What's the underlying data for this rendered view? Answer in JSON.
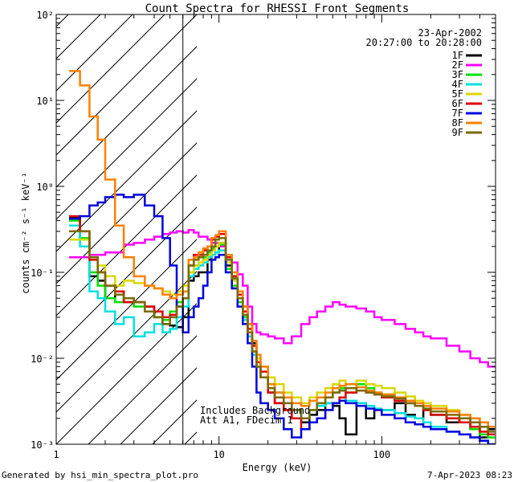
{
  "chart_data": {
    "type": "line",
    "title": "Count Spectra for RHESSI Front Segments",
    "xlabel": "Energy (keV)",
    "ylabel": "counts cm⁻² s⁻¹ keV⁻¹",
    "x_scale": "log",
    "y_scale": "log",
    "xlim": [
      1,
      500
    ],
    "ylim": [
      0.001,
      100
    ],
    "x_tick_labels": [
      "1",
      "10",
      "100"
    ],
    "y_tick_labels": [
      "10⁻³",
      "10⁻²",
      "10⁻¹",
      "10⁰",
      "10¹",
      "10²"
    ],
    "date": "23-Apr-2002",
    "time_range": "20:27:00 to 20:28:00",
    "excluded_region_keV": [
      1,
      6
    ],
    "annotations": [
      "Includes Background",
      "Att A1, FDecim 1"
    ],
    "footer_left": "Generated by hsi_min_spectra_plot.pro",
    "footer_right": "7-Apr-2023 08:23",
    "legend_position": "top-right",
    "series": [
      {
        "name": "1F",
        "color": "#000000",
        "x": [
          1.2,
          1.4,
          1.6,
          1.8,
          2.0,
          2.3,
          2.6,
          3.0,
          3.5,
          4.0,
          4.5,
          5.0,
          5.5,
          6.0,
          6.5,
          7.0,
          7.5,
          8.0,
          8.5,
          9.0,
          9.5,
          10,
          11,
          12,
          13,
          14,
          15,
          16,
          17,
          18,
          20,
          22,
          25,
          28,
          32,
          36,
          40,
          45,
          50,
          55,
          60,
          70,
          80,
          90,
          100,
          120,
          140,
          160,
          180,
          200,
          250,
          300,
          350,
          400,
          450
        ],
        "y": [
          0.43,
          0.24,
          0.09,
          0.08,
          0.05,
          0.06,
          0.045,
          0.045,
          0.04,
          0.03,
          0.025,
          0.024,
          0.023,
          0.03,
          0.08,
          0.09,
          0.1,
          0.1,
          0.14,
          0.16,
          0.17,
          0.22,
          0.12,
          0.09,
          0.06,
          0.04,
          0.025,
          0.015,
          0.008,
          0.006,
          0.004,
          0.003,
          0.0025,
          0.002,
          0.0018,
          0.0022,
          0.0025,
          0.003,
          0.0028,
          0.002,
          0.0013,
          0.003,
          0.002,
          0.0025,
          0.0025,
          0.003,
          0.0022,
          0.002,
          0.0025,
          0.0022,
          0.0018,
          0.002,
          0.0015,
          0.0012,
          0.0015
        ]
      },
      {
        "name": "2F",
        "color": "#ff00ff",
        "x": [
          1.2,
          1.4,
          1.6,
          1.8,
          2.0,
          2.3,
          2.6,
          3.0,
          3.5,
          4.0,
          4.5,
          5.0,
          5.5,
          6.0,
          6.5,
          7.0,
          7.5,
          8.0,
          8.5,
          9.0,
          9.5,
          10,
          11,
          12,
          13,
          14,
          15,
          16,
          17,
          18,
          20,
          22,
          25,
          28,
          32,
          36,
          40,
          45,
          50,
          55,
          60,
          70,
          80,
          90,
          100,
          120,
          140,
          160,
          180,
          200,
          250,
          300,
          350,
          400,
          450
        ],
        "y": [
          0.15,
          0.15,
          0.16,
          0.16,
          0.17,
          0.17,
          0.21,
          0.22,
          0.24,
          0.26,
          0.28,
          0.29,
          0.3,
          0.29,
          0.31,
          0.29,
          0.26,
          0.26,
          0.24,
          0.22,
          0.22,
          0.2,
          0.16,
          0.13,
          0.095,
          0.07,
          0.04,
          0.025,
          0.02,
          0.019,
          0.018,
          0.017,
          0.015,
          0.018,
          0.025,
          0.03,
          0.035,
          0.04,
          0.045,
          0.042,
          0.04,
          0.038,
          0.035,
          0.03,
          0.028,
          0.025,
          0.022,
          0.02,
          0.018,
          0.017,
          0.014,
          0.012,
          0.01,
          0.009,
          0.008
        ]
      },
      {
        "name": "3F",
        "color": "#00e000",
        "x": [
          1.2,
          1.4,
          1.6,
          1.8,
          2.0,
          2.3,
          2.6,
          3.0,
          3.5,
          4.0,
          4.5,
          5.0,
          5.5,
          6.0,
          6.5,
          7.0,
          7.5,
          8.0,
          8.5,
          9.0,
          9.5,
          10,
          11,
          12,
          13,
          14,
          15,
          16,
          17,
          18,
          20,
          22,
          25,
          28,
          32,
          36,
          40,
          45,
          50,
          55,
          60,
          70,
          80,
          90,
          100,
          120,
          140,
          160,
          180,
          200,
          250,
          300,
          350,
          400,
          450
        ],
        "y": [
          0.4,
          0.25,
          0.1,
          0.07,
          0.05,
          0.045,
          0.045,
          0.04,
          0.035,
          0.03,
          0.028,
          0.035,
          0.045,
          0.05,
          0.1,
          0.12,
          0.13,
          0.15,
          0.17,
          0.19,
          0.2,
          0.21,
          0.11,
          0.07,
          0.045,
          0.03,
          0.02,
          0.012,
          0.009,
          0.006,
          0.005,
          0.004,
          0.0035,
          0.0025,
          0.002,
          0.0025,
          0.003,
          0.0035,
          0.004,
          0.0045,
          0.004,
          0.005,
          0.0045,
          0.004,
          0.0038,
          0.0035,
          0.003,
          0.0028,
          0.0025,
          0.0022,
          0.002,
          0.0018,
          0.0015,
          0.0013,
          0.0012
        ]
      },
      {
        "name": "4F",
        "color": "#00e0e0",
        "x": [
          1.2,
          1.4,
          1.6,
          1.8,
          2.0,
          2.3,
          2.6,
          3.0,
          3.5,
          4.0,
          4.5,
          5.0,
          5.5,
          6.0,
          6.5,
          7.0,
          7.5,
          8.0,
          8.5,
          9.0,
          9.5,
          10,
          11,
          12,
          13,
          14,
          15,
          16,
          17,
          18,
          20,
          22,
          25,
          28,
          32,
          36,
          40,
          45,
          50,
          55,
          60,
          70,
          80,
          90,
          100,
          120,
          140,
          160,
          180,
          200,
          250,
          300,
          350,
          400,
          450
        ],
        "y": [
          0.35,
          0.2,
          0.06,
          0.05,
          0.035,
          0.025,
          0.03,
          0.018,
          0.02,
          0.025,
          0.02,
          0.022,
          0.03,
          0.04,
          0.09,
          0.11,
          0.12,
          0.13,
          0.15,
          0.16,
          0.17,
          0.18,
          0.1,
          0.065,
          0.04,
          0.028,
          0.018,
          0.011,
          0.008,
          0.006,
          0.005,
          0.004,
          0.003,
          0.0025,
          0.002,
          0.0025,
          0.0028,
          0.003,
          0.003,
          0.0035,
          0.0032,
          0.003,
          0.0028,
          0.0026,
          0.0025,
          0.0023,
          0.0021,
          0.002,
          0.0018,
          0.0016,
          0.0014,
          0.0013,
          0.0012,
          0.0011,
          0.001
        ]
      },
      {
        "name": "5F",
        "color": "#d8d800",
        "x": [
          1.2,
          1.4,
          1.6,
          1.8,
          2.0,
          2.3,
          2.6,
          3.0,
          3.5,
          4.0,
          4.5,
          5.0,
          5.5,
          6.0,
          6.5,
          7.0,
          7.5,
          8.0,
          8.5,
          9.0,
          9.5,
          10,
          11,
          12,
          13,
          14,
          15,
          16,
          17,
          18,
          20,
          22,
          25,
          28,
          32,
          36,
          40,
          45,
          50,
          55,
          60,
          70,
          80,
          90,
          100,
          120,
          140,
          160,
          180,
          200,
          250,
          300,
          350,
          400,
          450
        ],
        "y": [
          0.24,
          0.24,
          0.15,
          0.12,
          0.09,
          0.07,
          0.08,
          0.075,
          0.07,
          0.065,
          0.06,
          0.055,
          0.06,
          0.07,
          0.1,
          0.12,
          0.13,
          0.14,
          0.16,
          0.18,
          0.2,
          0.22,
          0.13,
          0.08,
          0.05,
          0.035,
          0.02,
          0.014,
          0.01,
          0.008,
          0.006,
          0.005,
          0.004,
          0.0035,
          0.003,
          0.0035,
          0.004,
          0.0045,
          0.005,
          0.0055,
          0.005,
          0.0055,
          0.005,
          0.0048,
          0.0045,
          0.004,
          0.0036,
          0.0032,
          0.003,
          0.0028,
          0.0025,
          0.0022,
          0.002,
          0.0018,
          0.0016
        ]
      },
      {
        "name": "6F",
        "color": "#e00000",
        "x": [
          1.2,
          1.4,
          1.6,
          1.8,
          2.0,
          2.3,
          2.6,
          3.0,
          3.5,
          4.0,
          4.5,
          5.0,
          5.5,
          6.0,
          6.5,
          7.0,
          7.5,
          8.0,
          8.5,
          9.0,
          9.5,
          10,
          11,
          12,
          13,
          14,
          15,
          16,
          17,
          18,
          20,
          22,
          25,
          28,
          32,
          36,
          40,
          45,
          50,
          55,
          60,
          70,
          80,
          90,
          100,
          120,
          140,
          160,
          180,
          200,
          250,
          300,
          350,
          400,
          450
        ],
        "y": [
          0.45,
          0.3,
          0.14,
          0.1,
          0.07,
          0.06,
          0.045,
          0.045,
          0.04,
          0.035,
          0.03,
          0.032,
          0.04,
          0.05,
          0.12,
          0.16,
          0.16,
          0.18,
          0.2,
          0.24,
          0.26,
          0.28,
          0.15,
          0.09,
          0.055,
          0.035,
          0.022,
          0.014,
          0.009,
          0.007,
          0.004,
          0.003,
          0.0025,
          0.002,
          0.0015,
          0.0018,
          0.002,
          0.0025,
          0.003,
          0.0035,
          0.004,
          0.0042,
          0.004,
          0.0038,
          0.0035,
          0.0032,
          0.003,
          0.0028,
          0.0025,
          0.0022,
          0.002,
          0.0018,
          0.0016,
          0.0014,
          0.0013
        ]
      },
      {
        "name": "7F",
        "color": "#0000e0",
        "x": [
          1.2,
          1.4,
          1.6,
          1.8,
          2.0,
          2.3,
          2.6,
          3.0,
          3.5,
          4.0,
          4.5,
          5.0,
          5.5,
          6.0,
          6.5,
          7.0,
          7.5,
          8.0,
          8.5,
          9.0,
          9.5,
          10,
          11,
          12,
          13,
          14,
          15,
          16,
          17,
          18,
          20,
          22,
          25,
          28,
          32,
          36,
          40,
          45,
          50,
          55,
          60,
          70,
          80,
          90,
          100,
          120,
          140,
          160,
          180,
          200,
          250,
          300,
          350,
          400,
          450
        ],
        "y": [
          0.42,
          0.45,
          0.6,
          0.65,
          0.75,
          0.8,
          0.75,
          0.8,
          0.6,
          0.45,
          0.25,
          0.12,
          0.04,
          0.02,
          0.03,
          0.04,
          0.05,
          0.07,
          0.1,
          0.14,
          0.15,
          0.16,
          0.1,
          0.065,
          0.04,
          0.025,
          0.015,
          0.008,
          0.004,
          0.003,
          0.0025,
          0.002,
          0.0015,
          0.0012,
          0.0015,
          0.0018,
          0.002,
          0.0025,
          0.003,
          0.0032,
          0.003,
          0.0028,
          0.0026,
          0.0025,
          0.0022,
          0.002,
          0.0018,
          0.0017,
          0.0016,
          0.0015,
          0.0014,
          0.0013,
          0.0012,
          0.0011,
          0.001
        ]
      },
      {
        "name": "8F",
        "color": "#ff8000",
        "x": [
          1.2,
          1.4,
          1.6,
          1.8,
          2.0,
          2.3,
          2.6,
          3.0,
          3.5,
          4.0,
          4.5,
          5.0,
          5.5,
          6.0,
          6.5,
          7.0,
          7.5,
          8.0,
          8.5,
          9.0,
          9.5,
          10,
          11,
          12,
          13,
          14,
          15,
          16,
          17,
          18,
          20,
          22,
          25,
          28,
          32,
          36,
          40,
          45,
          50,
          55,
          60,
          70,
          80,
          90,
          100,
          120,
          140,
          160,
          180,
          200,
          250,
          300,
          350,
          400,
          450
        ],
        "y": [
          22,
          15,
          6.5,
          3.5,
          1.2,
          0.35,
          0.15,
          0.09,
          0.07,
          0.065,
          0.055,
          0.05,
          0.055,
          0.06,
          0.14,
          0.15,
          0.17,
          0.19,
          0.2,
          0.25,
          0.27,
          0.3,
          0.16,
          0.1,
          0.06,
          0.04,
          0.025,
          0.016,
          0.011,
          0.008,
          0.005,
          0.004,
          0.0035,
          0.003,
          0.0028,
          0.0032,
          0.0035,
          0.004,
          0.0045,
          0.0048,
          0.005,
          0.0046,
          0.0042,
          0.004,
          0.0038,
          0.0035,
          0.0032,
          0.003,
          0.0028,
          0.0026,
          0.0024,
          0.0022,
          0.002,
          0.0018,
          0.0016
        ]
      },
      {
        "name": "9F",
        "color": "#7a6a00",
        "x": [
          1.2,
          1.4,
          1.6,
          1.8,
          2.0,
          2.3,
          2.6,
          3.0,
          3.5,
          4.0,
          4.5,
          5.0,
          5.5,
          6.0,
          6.5,
          7.0,
          7.5,
          8.0,
          8.5,
          9.0,
          9.5,
          10,
          11,
          12,
          13,
          14,
          15,
          16,
          17,
          18,
          20,
          22,
          25,
          28,
          32,
          36,
          40,
          45,
          50,
          55,
          60,
          70,
          80,
          90,
          100,
          120,
          140,
          160,
          180,
          200,
          250,
          300,
          350,
          400,
          450
        ],
        "y": [
          0.3,
          0.3,
          0.15,
          0.1,
          0.07,
          0.055,
          0.05,
          0.045,
          0.035,
          0.03,
          0.025,
          0.03,
          0.04,
          0.05,
          0.12,
          0.14,
          0.15,
          0.16,
          0.18,
          0.2,
          0.24,
          0.25,
          0.14,
          0.085,
          0.05,
          0.032,
          0.02,
          0.012,
          0.008,
          0.006,
          0.0045,
          0.0035,
          0.003,
          0.0025,
          0.002,
          0.0025,
          0.003,
          0.0035,
          0.004,
          0.0042,
          0.0045,
          0.0042,
          0.004,
          0.0038,
          0.0036,
          0.0034,
          0.003,
          0.0028,
          0.0026,
          0.0024,
          0.0022,
          0.002,
          0.0018,
          0.0016,
          0.0014
        ]
      }
    ]
  }
}
